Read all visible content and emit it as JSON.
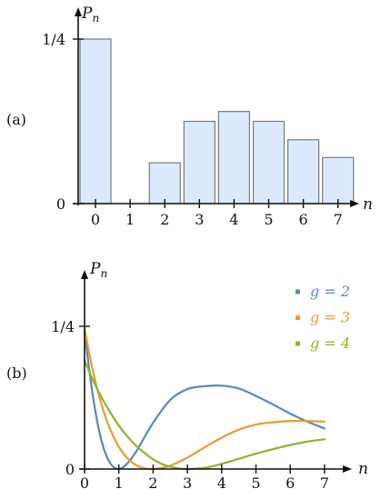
{
  "chart_data": [
    {
      "panel": "(a)",
      "type": "bar",
      "ylabel": "P",
      "ylabel_sub": "n",
      "xlabel": "n",
      "ylim": [
        0,
        0.28
      ],
      "yticks": [
        {
          "v": 0,
          "label": "0"
        },
        {
          "v": 0.25,
          "label": "1/4"
        }
      ],
      "categories": [
        "0",
        "1",
        "2",
        "3",
        "4",
        "5",
        "6",
        "7"
      ],
      "values": [
        0.25,
        0,
        0.062,
        0.125,
        0.14,
        0.125,
        0.097,
        0.07
      ],
      "colors": {
        "bar_fill": "#dbeafc",
        "bar_stroke": "#7a7a7a",
        "axis": "#111111"
      }
    },
    {
      "panel": "(b)",
      "type": "line",
      "ylabel": "P",
      "ylabel_sub": "n",
      "xlabel": "n",
      "xlim": [
        0,
        7
      ],
      "ylim": [
        0,
        0.385
      ],
      "xticks": [
        "0",
        "1",
        "2",
        "3",
        "4",
        "5",
        "6",
        "7"
      ],
      "yticks": [
        {
          "v": 0,
          "label": "0"
        },
        {
          "v": 0.25,
          "label": "1/4"
        }
      ],
      "series": [
        {
          "name": "g = 2",
          "color": "#5b86bd",
          "x": [
            0,
            0.25,
            0.5,
            0.75,
            1,
            1.25,
            1.5,
            1.75,
            2,
            2.5,
            3,
            3.5,
            4,
            4.5,
            5,
            5.5,
            6,
            6.5,
            7
          ],
          "y": [
            0.24,
            0.125,
            0.048,
            0.01,
            0.0,
            0.01,
            0.03,
            0.056,
            0.081,
            0.121,
            0.14,
            0.145,
            0.146,
            0.141,
            0.128,
            0.113,
            0.097,
            0.083,
            0.071
          ]
        },
        {
          "name": "g = 3",
          "color": "#ee9a2c",
          "x": [
            0,
            0.25,
            0.5,
            0.75,
            1,
            1.25,
            1.5,
            1.75,
            2,
            2.25,
            2.5,
            3,
            3.5,
            4,
            4.5,
            5,
            5.5,
            6,
            6.5,
            7
          ],
          "y": [
            0.245,
            0.17,
            0.112,
            0.069,
            0.039,
            0.019,
            0.007,
            0.001,
            0.0,
            0.002,
            0.006,
            0.02,
            0.038,
            0.055,
            0.069,
            0.078,
            0.082,
            0.084,
            0.084,
            0.083
          ]
        },
        {
          "name": "g = 4",
          "color": "#8db32f",
          "x": [
            0,
            0.25,
            0.5,
            0.75,
            1,
            1.25,
            1.5,
            1.75,
            2,
            2.25,
            2.5,
            2.75,
            3,
            3.5,
            4,
            4.5,
            5,
            5.5,
            6,
            6.5,
            7
          ],
          "y": [
            0.19,
            0.155,
            0.125,
            0.099,
            0.076,
            0.057,
            0.041,
            0.028,
            0.017,
            0.009,
            0.004,
            0.001,
            0.0,
            0.002,
            0.009,
            0.018,
            0.027,
            0.035,
            0.042,
            0.048,
            0.052
          ]
        }
      ],
      "legend": "top-right"
    }
  ]
}
